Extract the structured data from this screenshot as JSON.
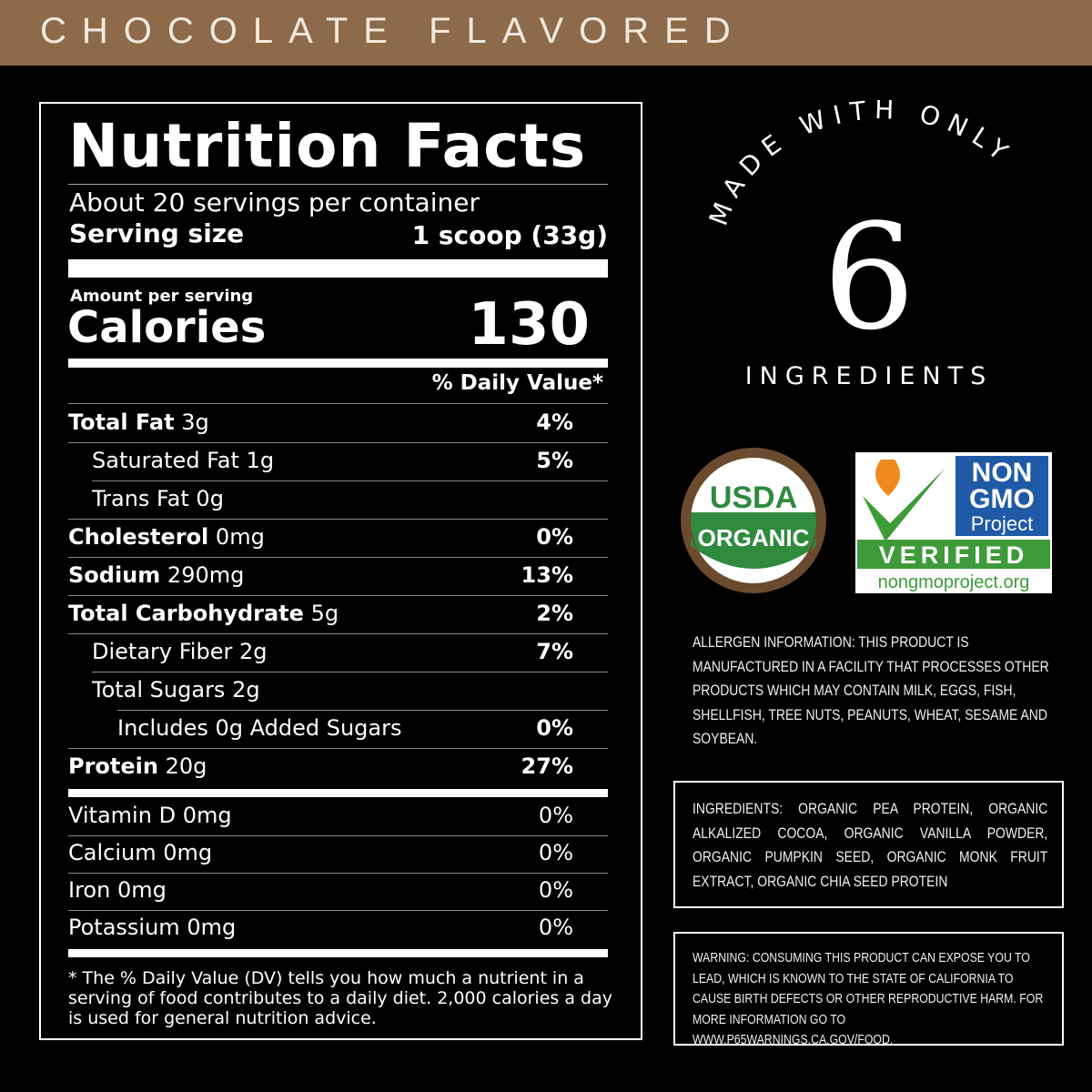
{
  "banner": {
    "title": "CHOCOLATE FLAVORED"
  },
  "nutrition_facts": {
    "title": "Nutrition Facts",
    "servings": "About 20 servings per container",
    "serving_size": {
      "label": "Serving size",
      "value": "1 scoop (33g)"
    },
    "amount_per_serving": "Amount per serving",
    "calories": {
      "label": "Calories",
      "value": "130"
    },
    "daily_value_header": "% Daily Value*",
    "nutrients": [
      {
        "name": "Total Fat",
        "amount": "3g",
        "dv": "4%"
      },
      {
        "name": "Saturated Fat",
        "amount": "1g",
        "dv": "5%"
      },
      {
        "name": "Trans Fat",
        "amount": "0g"
      },
      {
        "name": "Cholesterol",
        "amount": "0mg",
        "dv": "0%"
      },
      {
        "name": "Sodium",
        "amount": "290mg",
        "dv": "13%"
      },
      {
        "name": "Total Carbohydrate",
        "amount": "5g",
        "dv": "2%"
      },
      {
        "name": "Dietary Fiber",
        "amount": "2g",
        "dv": "7%"
      },
      {
        "name": "Total Sugars",
        "amount": "2g"
      },
      {
        "name": "Includes 0g Added Sugars",
        "dv": "0%"
      },
      {
        "name": "Protein",
        "amount": "20g",
        "dv": "27%"
      }
    ],
    "vitamins": [
      {
        "name": "Vitamin D",
        "amount": "0mg",
        "dv": "0%"
      },
      {
        "name": "Calcium",
        "amount": "0mg",
        "dv": "0%"
      },
      {
        "name": "Iron",
        "amount": "0mg",
        "dv": "0%"
      },
      {
        "name": "Potassium",
        "amount": "0mg",
        "dv": "0%"
      }
    ],
    "footnote": "* The % Daily Value (DV) tells you how much a nutrient in a serving of food contributes to a daily diet. 2,000 calories a day is used for general nutrition advice."
  },
  "badge": {
    "arc": "MADE WITH ONLY",
    "number": "6",
    "label": "INGREDIENTS"
  },
  "usda": {
    "top": "USDA",
    "band": "ORGANIC"
  },
  "non_gmo": {
    "line1": "NON",
    "line2": "GMO",
    "line3": "Project",
    "verified": "VERIFIED",
    "url": "nongmoproject.org"
  },
  "allergen": "ALLERGEN INFORMATION: THIS PRODUCT IS MANUFACTURED IN A FACILITY THAT PROCESSES OTHER PRODUCTS WHICH MAY CONTAIN MILK, EGGS, FISH, SHELLFISH, TREE NUTS, PEANUTS, WHEAT, SESAME AND SOYBEAN.",
  "ingredients": "INGREDIENTS: ORGANIC PEA PROTEIN, ORGANIC ALKALIZED COCOA, ORGANIC VANILLA POWDER, ORGANIC PUMPKIN SEED, ORGANIC MONK FRUIT EXTRACT, ORGANIC CHIA SEED PROTEIN",
  "warning": "WARNING: CONSUMING THIS PRODUCT CAN EXPOSE YOU TO LEAD, WHICH IS KNOWN TO THE STATE OF CALIFORNIA TO CAUSE BIRTH DEFECTS OR OTHER REPRODUCTIVE HARM. FOR MORE INFORMATION GO TO WWW.P65WARNINGS.CA.GOV/FOOD."
}
